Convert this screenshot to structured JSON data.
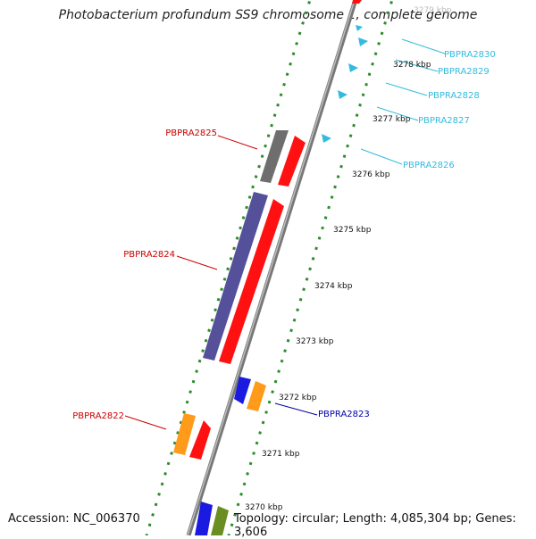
{
  "title": "Photobacterium profundum SS9 chromosome 1, complete genome",
  "footer": {
    "accession": "Accession: NC_006370",
    "summary": "Topology: circular; Length: 4,085,304 bp; Genes: 3,606"
  },
  "ticks": [
    "3270 kbp",
    "3271 kbp",
    "3272 kbp",
    "3273 kbp",
    "3274 kbp",
    "3275 kbp",
    "3276 kbp",
    "3277 kbp",
    "3278 kbp",
    "3279 kbp"
  ],
  "genes_left": [
    "PBPRA2825",
    "PBPRA2824",
    "PBPRA2822"
  ],
  "genes_right": [
    "PBPRA2830",
    "PBPRA2829",
    "PBPRA2828",
    "PBPRA2827",
    "PBPRA2826"
  ],
  "gene_right_blue": "PBPRA2823",
  "colors": {
    "backbone": "#8a8a8a",
    "dots": "#2e8b2e",
    "label_red": "#cc0000",
    "label_cyan": "#33bbdd",
    "label_blue": "#0000aa",
    "cds_red": "#ff1111",
    "cds_purple": "#55509a",
    "cds_gray": "#6e6e6e",
    "cds_orange": "#ff9a1a",
    "cds_blue": "#1a1ae0",
    "cds_olive": "#6b8e23"
  }
}
